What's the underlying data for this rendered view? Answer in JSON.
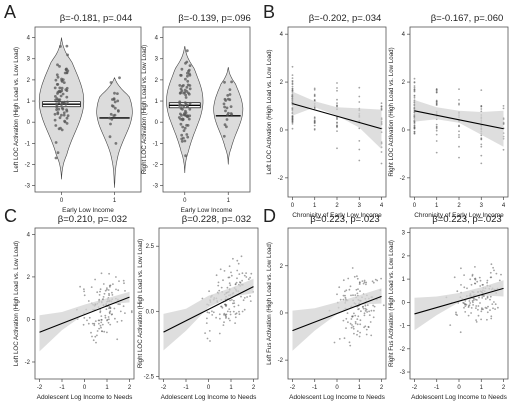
{
  "colors": {
    "violin_fill": "#dcdcdc",
    "panel_border": "#555555",
    "band_fill": "#d3d3d3",
    "fit_line": "#000000",
    "point_color": "#555555",
    "median_line": "#000000"
  },
  "panels": [
    {
      "key": "A",
      "label": "A"
    },
    {
      "key": "B",
      "label": "B"
    },
    {
      "key": "C",
      "label": "C"
    },
    {
      "key": "D",
      "label": "D"
    }
  ],
  "chart_data": [
    {
      "id": "A-left",
      "panel": "A",
      "type": "violin",
      "title": "β=-0.181, p=.044",
      "xlabel": "Early Low Income",
      "ylabel": "Left LOC Activation (High Load vs. Low Load)",
      "categories": [
        "0",
        "1"
      ],
      "ylim": [
        -3.3,
        4.5
      ],
      "yticks": [
        -3,
        -2,
        -1,
        0,
        1,
        2,
        3,
        4
      ],
      "groups": [
        {
          "category": "0",
          "min": -2.7,
          "max": 4.0,
          "median": 0.85,
          "ci_low": 0.73,
          "ci_high": 0.97,
          "mode": 1.0
        },
        {
          "category": "1",
          "min": -3.1,
          "max": 2.1,
          "median": 0.2,
          "ci_low": 0.2,
          "ci_high": 0.2,
          "mode": 0.5
        }
      ]
    },
    {
      "id": "A-right",
      "panel": "A",
      "type": "violin",
      "title": "β=-0.139, p=.096",
      "xlabel": "Early Low Income",
      "ylabel": "Right LOC Activation (High Load vs. Low Load)",
      "categories": [
        "0",
        "1"
      ],
      "ylim": [
        -3.3,
        4.5
      ],
      "yticks": [
        -3,
        -2,
        -1,
        0,
        1,
        2,
        3,
        4
      ],
      "groups": [
        {
          "category": "0",
          "min": -2.4,
          "max": 3.6,
          "median": 0.8,
          "ci_low": 0.68,
          "ci_high": 0.92,
          "mode": 1.0
        },
        {
          "category": "1",
          "min": -2.0,
          "max": 2.6,
          "median": 0.3,
          "ci_low": 0.3,
          "ci_high": 0.3,
          "mode": 0.6
        }
      ]
    },
    {
      "id": "B-left",
      "panel": "B",
      "type": "scatter",
      "title": "β=-0.202, p=.034",
      "xlabel": "Chronicity of Early Low Income",
      "ylabel": "Left LOC Activation (High Load vs. Low Load)",
      "xlim": [
        -0.2,
        4.2
      ],
      "ylim": [
        -2.8,
        4.3
      ],
      "xticks": [
        0,
        1,
        2,
        3,
        4
      ],
      "yticks": [
        -2,
        0,
        2,
        4
      ],
      "fit": {
        "x": [
          0,
          4
        ],
        "y": [
          1.1,
          0.05
        ]
      },
      "band": {
        "x": [
          0,
          1,
          2,
          3,
          4
        ],
        "upper": [
          1.6,
          1.2,
          0.95,
          0.9,
          0.85
        ],
        "lower": [
          0.6,
          0.95,
          0.6,
          0.1,
          -0.8
        ]
      }
    },
    {
      "id": "B-right",
      "panel": "B",
      "type": "scatter",
      "title": "β=-0.167, p=.060",
      "xlabel": "Chronicity of Early Low Income",
      "ylabel": "Right LOC Activation (High Load vs. Low Load)",
      "xlim": [
        -0.2,
        4.2
      ],
      "ylim": [
        -2.8,
        4.3
      ],
      "xticks": [
        0,
        1,
        2,
        3,
        4
      ],
      "yticks": [
        -2,
        0,
        2,
        4
      ],
      "fit": {
        "x": [
          0,
          4
        ],
        "y": [
          0.8,
          0.05
        ]
      },
      "band": {
        "x": [
          0,
          1,
          2,
          3,
          4
        ],
        "upper": [
          1.25,
          0.95,
          0.8,
          0.75,
          0.8
        ],
        "lower": [
          0.35,
          0.45,
          0.3,
          -0.2,
          -0.7
        ]
      }
    },
    {
      "id": "C-left",
      "panel": "C",
      "type": "scatter",
      "title": "β=0.210, p=.032",
      "xlabel": "Adolescent Log Income to Needs",
      "ylabel": "Left LOC Activation (High Load vs. Low Load)",
      "xlim": [
        -2.2,
        2.2
      ],
      "ylim": [
        -2.8,
        4.3
      ],
      "xticks": [
        -2,
        -1,
        0,
        1,
        2
      ],
      "yticks": [
        -2,
        0,
        2,
        4
      ],
      "fit": {
        "x": [
          -2,
          2
        ],
        "y": [
          -0.6,
          1.05
        ]
      },
      "band": {
        "x": [
          -2,
          -1,
          0,
          1,
          2
        ],
        "upper": [
          0.2,
          0.35,
          0.7,
          1.0,
          1.3
        ],
        "lower": [
          -1.5,
          -0.5,
          0.25,
          0.7,
          0.8
        ]
      }
    },
    {
      "id": "C-right",
      "panel": "C",
      "type": "scatter",
      "title": "β=0.228, p=.032",
      "xlabel": "Adolescent Log Income to Needs",
      "ylabel": "Right LOC Activation (High Load vs. Low Load)",
      "xlim": [
        -2.2,
        2.2
      ],
      "ylim": [
        -2.6,
        3.2
      ],
      "xticks": [
        -2,
        -1,
        0,
        1,
        2
      ],
      "yticks": [
        "-2.5",
        "0.0",
        "2.5"
      ],
      "fit": {
        "x": [
          -2,
          2
        ],
        "y": [
          -0.8,
          0.95
        ]
      },
      "band": {
        "x": [
          -2,
          -1,
          0,
          1,
          2
        ],
        "upper": [
          -0.1,
          0.1,
          0.6,
          0.9,
          1.25
        ],
        "lower": [
          -1.5,
          -0.75,
          0.15,
          0.55,
          0.7
        ]
      }
    },
    {
      "id": "D-left",
      "panel": "D",
      "type": "scatter",
      "title": "β=0.223, p=.023",
      "xlabel": "Adolescent Log Income to Needs",
      "ylabel": "Left Fus Activation (High Load vs. Low Load)",
      "xlim": [
        -2.2,
        2.2
      ],
      "ylim": [
        -2.8,
        3.6
      ],
      "xticks": [
        -2,
        -1,
        0,
        1,
        2
      ],
      "yticks": [
        -2,
        0,
        2
      ],
      "fit": {
        "x": [
          -2,
          2
        ],
        "y": [
          -0.75,
          0.7
        ]
      },
      "band": {
        "x": [
          -2,
          -1,
          0,
          1,
          2
        ],
        "upper": [
          0.1,
          0.2,
          0.45,
          0.75,
          1.05
        ],
        "lower": [
          -1.6,
          -0.75,
          -0.05,
          0.35,
          0.4
        ]
      }
    },
    {
      "id": "D-right",
      "panel": "D",
      "type": "scatter",
      "title": "β=0.223, p=.023",
      "xlabel": "Adolescent Log Income to Needs",
      "ylabel": "Right Fus Activation (High Load vs. Low Load)",
      "xlim": [
        -2.2,
        2.2
      ],
      "ylim": [
        -3.3,
        3.2
      ],
      "xticks": [
        -2,
        -1,
        0,
        1,
        2
      ],
      "yticks": [
        -3,
        -2,
        -1,
        0,
        1,
        2,
        3
      ],
      "fit": {
        "x": [
          -2,
          2
        ],
        "y": [
          -0.5,
          0.6
        ]
      },
      "band": {
        "x": [
          -2,
          -1,
          0,
          1,
          2
        ],
        "upper": [
          0.2,
          0.25,
          0.4,
          0.65,
          0.95
        ],
        "lower": [
          -1.2,
          -0.55,
          0.0,
          0.3,
          0.25
        ]
      }
    }
  ]
}
